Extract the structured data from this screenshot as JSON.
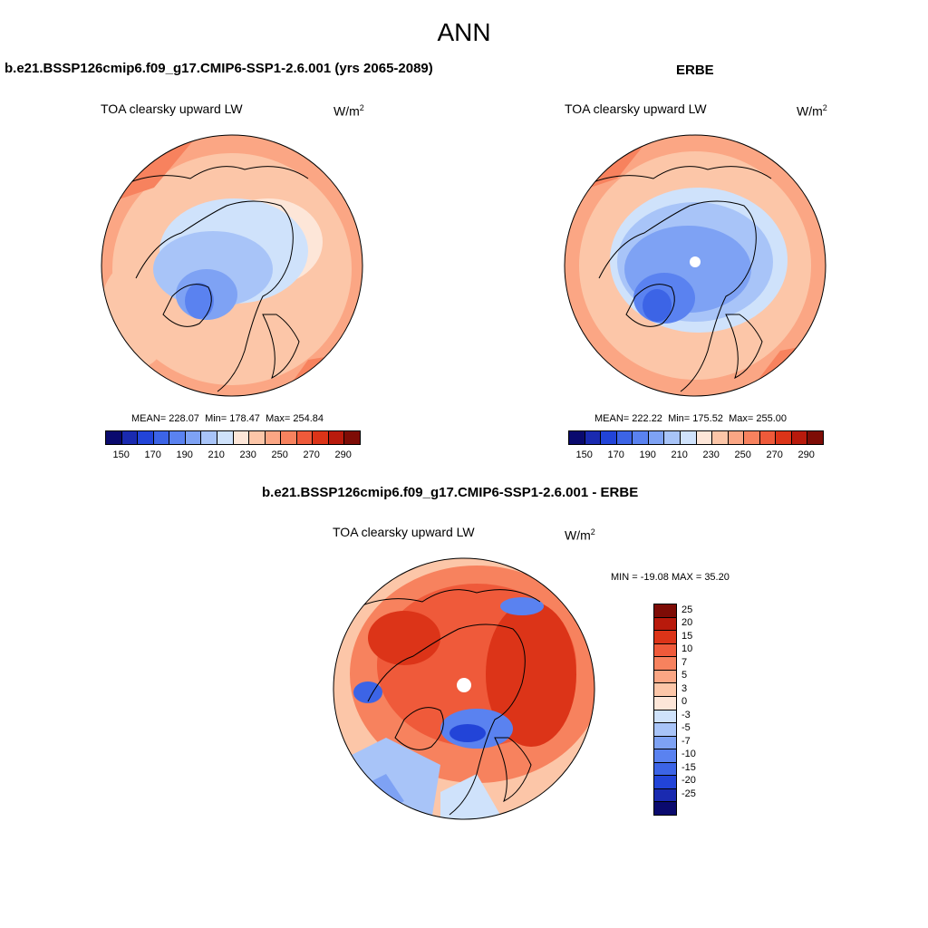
{
  "header": {
    "title": "ANN"
  },
  "panels": {
    "model": {
      "title": "b.e21.BSSP126cmip6.f09_g17.CMIP6-SSP1-2.6.001 (yrs 2065-2089)",
      "variable": "TOA clearsky upward LW",
      "units": "W/m",
      "units_exp": "2",
      "mean_label": "MEAN=",
      "mean": "228.07",
      "min_label": "Min=",
      "min": "178.47",
      "max_label": "Max=",
      "max": "254.84"
    },
    "obs": {
      "title": "ERBE",
      "variable": "TOA clearsky upward LW",
      "units": "W/m",
      "units_exp": "2",
      "mean_label": "MEAN=",
      "mean": "222.22",
      "min_label": "Min=",
      "min": "175.52",
      "max_label": "Max=",
      "max": "255.00"
    },
    "diff": {
      "title": "b.e21.BSSP126cmip6.f09_g17.CMIP6-SSP1-2.6.001 - ERBE",
      "variable": "TOA clearsky upward LW",
      "units": "W/m",
      "units_exp": "2",
      "minmax": "MIN = -19.08 MAX =  35.20"
    }
  },
  "abs_colorbar": {
    "colors": [
      "#0a0a6e",
      "#1a2ab0",
      "#2244d8",
      "#3c64e6",
      "#5a82f0",
      "#7ea2f4",
      "#a8c4f8",
      "#cfe2fb",
      "#fde6d8",
      "#fcc6a8",
      "#fba684",
      "#f7825e",
      "#ef5a3a",
      "#dc3418",
      "#b81a0c",
      "#7e0c06"
    ],
    "labels": [
      "150",
      "170",
      "190",
      "210",
      "230",
      "250",
      "270",
      "290"
    ]
  },
  "diff_colorbar": {
    "colors": [
      "#7e0c06",
      "#b81a0c",
      "#dc3418",
      "#ef5a3a",
      "#f7825e",
      "#fba684",
      "#fcc6a8",
      "#fde6d8",
      "#cfe2fb",
      "#a8c4f8",
      "#7ea2f4",
      "#5a82f0",
      "#3c64e6",
      "#2244d8",
      "#1a2ab0",
      "#0a0a6e"
    ],
    "labels": [
      "25",
      "20",
      "15",
      "10",
      "7",
      "5",
      "3",
      "0",
      "-3",
      "-5",
      "-7",
      "-10",
      "-15",
      "-20",
      "-25"
    ]
  }
}
